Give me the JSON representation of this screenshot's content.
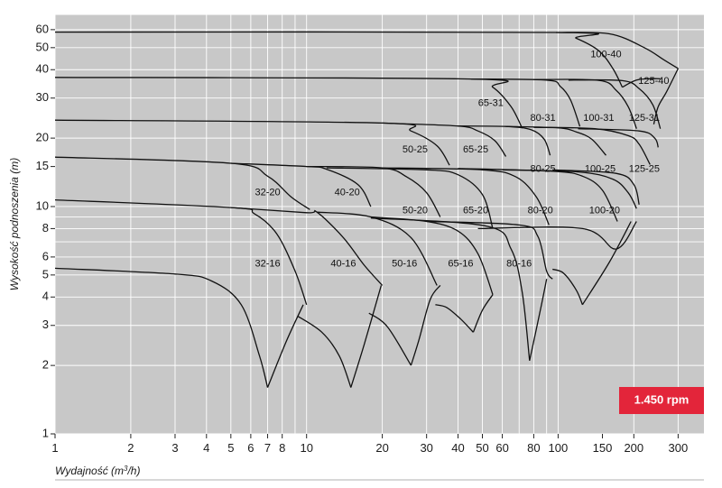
{
  "chart_data": {
    "type": "line",
    "title": "",
    "xlabel": "Wydajność (m³/h)",
    "ylabel": "Wysokość podnoszenia (m)",
    "xscale": "log",
    "yscale": "log",
    "xlim": [
      1,
      380
    ],
    "ylim": [
      1,
      70
    ],
    "grid": true,
    "background": "#c8c8c8",
    "grid_color": "#ffffff",
    "line_color": "#111111",
    "speed_badge": {
      "text": "1.450 rpm",
      "color": "#e3253a"
    },
    "x_ticks": [
      1,
      2,
      3,
      4,
      5,
      6,
      7,
      8,
      10,
      20,
      30,
      40,
      50,
      60,
      80,
      100,
      150,
      200,
      300
    ],
    "y_ticks": [
      1,
      2,
      3,
      4,
      5,
      6,
      8,
      10,
      15,
      20,
      30,
      40,
      50,
      60
    ],
    "families": [
      {
        "name": "32-16",
        "label": {
          "x": 7.0,
          "y": 5.6
        }
      },
      {
        "name": "40-16",
        "label": {
          "x": 14.0,
          "y": 5.6
        }
      },
      {
        "name": "50-16",
        "label": {
          "x": 24.5,
          "y": 5.6
        }
      },
      {
        "name": "65-16",
        "label": {
          "x": 41.0,
          "y": 5.6
        }
      },
      {
        "name": "80-16",
        "label": {
          "x": 70.0,
          "y": 5.6
        }
      },
      {
        "name": "32-20",
        "label": {
          "x": 7.0,
          "y": 11.5
        }
      },
      {
        "name": "40-20",
        "label": {
          "x": 14.5,
          "y": 11.5
        }
      },
      {
        "name": "50-20",
        "label": {
          "x": 27.0,
          "y": 9.6
        }
      },
      {
        "name": "65-20",
        "label": {
          "x": 47.0,
          "y": 9.6
        }
      },
      {
        "name": "80-20",
        "label": {
          "x": 85.0,
          "y": 9.6
        }
      },
      {
        "name": "100-20",
        "label": {
          "x": 153.0,
          "y": 9.6
        }
      },
      {
        "name": "50-25",
        "label": {
          "x": 27.0,
          "y": 17.8
        }
      },
      {
        "name": "65-25",
        "label": {
          "x": 47.0,
          "y": 17.8
        }
      },
      {
        "name": "80-25",
        "label": {
          "x": 87.0,
          "y": 14.6
        }
      },
      {
        "name": "100-25",
        "label": {
          "x": 147.0,
          "y": 14.6
        }
      },
      {
        "name": "125-25",
        "label": {
          "x": 220.0,
          "y": 14.6
        }
      },
      {
        "name": "65-31",
        "label": {
          "x": 54.0,
          "y": 28.5
        }
      },
      {
        "name": "80-31",
        "label": {
          "x": 87.0,
          "y": 24.5
        }
      },
      {
        "name": "100-31",
        "label": {
          "x": 145.0,
          "y": 24.5
        }
      },
      {
        "name": "125-31",
        "label": {
          "x": 220.0,
          "y": 24.5
        }
      },
      {
        "name": "100-40",
        "label": {
          "x": 155.0,
          "y": 46.5
        }
      },
      {
        "name": "125-40",
        "label": {
          "x": 240.0,
          "y": 35.5
        }
      }
    ],
    "curves": [
      {
        "points": [
          [
            1,
            5.35
          ],
          [
            3,
            5.05
          ],
          [
            4.2,
            4.7
          ],
          [
            5.5,
            3.7
          ],
          [
            6.5,
            2.2
          ],
          [
            7,
            1.6
          ]
        ]
      },
      {
        "points": [
          [
            7,
            1.6
          ],
          [
            8.3,
            2.55
          ],
          [
            9.7,
            3.7
          ]
        ]
      },
      {
        "points": [
          [
            1,
            10.7
          ],
          [
            5,
            9.9
          ],
          [
            6.2,
            9.3
          ],
          [
            7.6,
            7.6
          ],
          [
            9,
            5.2
          ],
          [
            10,
            3.7
          ]
        ]
      },
      {
        "points": [
          [
            9.2,
            3.3
          ],
          [
            11.5,
            2.8
          ],
          [
            13.5,
            2.2
          ],
          [
            15,
            1.6
          ]
        ]
      },
      {
        "points": [
          [
            15,
            1.6
          ],
          [
            17,
            2.5
          ],
          [
            19.8,
            4.5
          ]
        ]
      },
      {
        "points": [
          [
            5,
            9.9
          ],
          [
            10,
            9.4
          ],
          [
            11,
            9.45
          ],
          [
            14,
            7.3
          ],
          [
            17,
            5.5
          ],
          [
            20,
            4.5
          ]
        ]
      },
      {
        "points": [
          [
            17.7,
            3.4
          ],
          [
            21,
            2.95
          ],
          [
            26,
            2.0
          ]
        ]
      },
      {
        "points": [
          [
            26,
            2.0
          ],
          [
            28,
            2.6
          ],
          [
            31,
            3.9
          ],
          [
            34,
            4.5
          ]
        ]
      },
      {
        "points": [
          [
            11,
            9.45
          ],
          [
            18,
            9.0
          ],
          [
            26,
            7.3
          ],
          [
            33,
            4.5
          ]
        ]
      },
      {
        "points": [
          [
            32.5,
            3.7
          ],
          [
            36,
            3.6
          ],
          [
            41,
            3.2
          ],
          [
            46,
            2.8
          ]
        ]
      },
      {
        "points": [
          [
            46,
            2.8
          ],
          [
            50,
            3.5
          ],
          [
            55,
            4.1
          ]
        ]
      },
      {
        "points": [
          [
            18,
            9.0
          ],
          [
            30,
            8.6
          ],
          [
            40,
            7.8
          ],
          [
            48,
            6.2
          ],
          [
            55,
            4.1
          ]
        ]
      },
      {
        "points": [
          [
            18,
            8.9
          ],
          [
            52,
            8.2
          ],
          [
            65,
            6.5
          ],
          [
            72,
            4.2
          ],
          [
            77,
            2.1
          ]
        ]
      },
      {
        "points": [
          [
            77,
            2.1
          ],
          [
            85,
            3.5
          ],
          [
            90,
            4.8
          ]
        ]
      },
      {
        "points": [
          [
            30,
            8.6
          ],
          [
            70,
            8.3
          ],
          [
            83,
            7.4
          ],
          [
            90,
            5.2
          ],
          [
            95,
            4.8
          ]
        ]
      },
      {
        "points": [
          [
            95,
            5.3
          ],
          [
            105,
            5.1
          ],
          [
            118,
            4.3
          ],
          [
            125,
            3.7
          ]
        ]
      },
      {
        "points": [
          [
            125,
            3.7
          ],
          [
            160,
            5.7
          ],
          [
            195,
            8.6
          ]
        ]
      },
      {
        "points": [
          [
            48,
            8.0
          ],
          [
            125,
            8.0
          ],
          [
            170,
            6.5
          ],
          [
            205,
            8.6
          ]
        ]
      },
      {
        "points": [
          [
            1,
            16.5
          ],
          [
            5,
            15.5
          ],
          [
            7,
            13.6
          ],
          [
            8.7,
            11
          ],
          [
            10.3,
            9.7
          ]
        ]
      },
      {
        "points": [
          [
            5,
            15.5
          ],
          [
            10,
            15.0
          ],
          [
            12,
            14.6
          ],
          [
            16,
            12.5
          ],
          [
            18,
            10
          ]
        ]
      },
      {
        "points": [
          [
            10,
            15.0
          ],
          [
            20,
            14.8
          ],
          [
            25,
            13.5
          ],
          [
            30,
            11.5
          ],
          [
            34,
            9
          ]
        ]
      },
      {
        "points": [
          [
            12,
            14.8
          ],
          [
            30,
            14.5
          ],
          [
            40,
            13.8
          ],
          [
            50,
            11.3
          ],
          [
            55,
            8
          ]
        ]
      },
      {
        "points": [
          [
            20,
            14.8
          ],
          [
            50,
            14.5
          ],
          [
            68,
            13.5
          ],
          [
            82,
            11
          ],
          [
            92,
            8.3
          ]
        ]
      },
      {
        "points": [
          [
            40,
            14.7
          ],
          [
            95,
            14.3
          ],
          [
            125,
            13.6
          ],
          [
            150,
            11.8
          ],
          [
            172,
            8.6
          ]
        ]
      },
      {
        "points": [
          [
            60,
            14.5
          ],
          [
            120,
            14.2
          ],
          [
            165,
            13.2
          ],
          [
            190,
            11.5
          ],
          [
            205,
            9.8
          ]
        ]
      },
      {
        "points": [
          [
            95,
            14.5
          ],
          [
            170,
            14.0
          ],
          [
            200,
            12.5
          ],
          [
            210,
            10.2
          ]
        ]
      },
      {
        "points": [
          [
            1,
            24.0
          ],
          [
            20,
            23.3
          ],
          [
            26,
            21.5
          ],
          [
            33,
            18.5
          ],
          [
            37,
            15.2
          ]
        ]
      },
      {
        "points": [
          [
            20,
            23.3
          ],
          [
            40,
            22.6
          ],
          [
            48,
            21.5
          ],
          [
            56,
            19.5
          ],
          [
            62,
            16.6
          ]
        ]
      },
      {
        "points": [
          [
            40,
            22.6
          ],
          [
            62,
            22.5
          ],
          [
            78,
            21.8
          ],
          [
            88,
            19.8
          ],
          [
            93,
            16.8
          ]
        ]
      },
      {
        "points": [
          [
            62,
            22.5
          ],
          [
            100,
            22.2
          ],
          [
            118,
            21.3
          ],
          [
            136,
            19.8
          ],
          [
            155,
            16.8
          ]
        ]
      },
      {
        "points": [
          [
            80,
            22.3
          ],
          [
            140,
            22.0
          ],
          [
            190,
            20.5
          ],
          [
            210,
            18.8
          ],
          [
            232,
            15.3
          ]
        ]
      },
      {
        "points": [
          [
            120,
            22.0
          ],
          [
            210,
            21.5
          ],
          [
            242,
            20.0
          ],
          [
            250,
            18.2
          ]
        ]
      },
      {
        "points": [
          [
            1,
            37.0
          ],
          [
            45,
            36.4
          ],
          [
            55,
            33.5
          ],
          [
            65,
            27.5
          ],
          [
            72,
            22.1
          ]
        ]
      },
      {
        "points": [
          [
            45,
            36.4
          ],
          [
            90,
            36.0
          ],
          [
            102,
            33.8
          ],
          [
            112,
            29.5
          ],
          [
            122,
            22.5
          ]
        ]
      },
      {
        "points": [
          [
            80,
            36.2
          ],
          [
            145,
            35.9
          ],
          [
            170,
            32.5
          ],
          [
            190,
            27.5
          ],
          [
            205,
            22.0
          ]
        ]
      },
      {
        "points": [
          [
            110,
            36.0
          ],
          [
            180,
            35.8
          ],
          [
            210,
            33
          ],
          [
            238,
            28
          ],
          [
            255,
            22.0
          ]
        ]
      },
      {
        "points": [
          [
            1,
            58.5
          ],
          [
            98,
            58.3
          ],
          [
            118,
            55
          ],
          [
            145,
            48.5
          ],
          [
            165,
            40.5
          ],
          [
            180,
            33.5
          ]
        ]
      },
      {
        "points": [
          [
            98,
            58.3
          ],
          [
            160,
            57.5
          ],
          [
            220,
            50
          ],
          [
            265,
            44
          ],
          [
            300,
            40.5
          ]
        ]
      },
      {
        "points": [
          [
            300,
            40.5
          ],
          [
            270,
            32
          ],
          [
            250,
            27.5
          ],
          [
            240,
            23.0
          ]
        ]
      },
      {
        "points": [
          [
            180,
            33.5
          ],
          [
            205,
            36.0
          ],
          [
            235,
            36.5
          ],
          [
            255,
            36.5
          ]
        ]
      }
    ]
  }
}
